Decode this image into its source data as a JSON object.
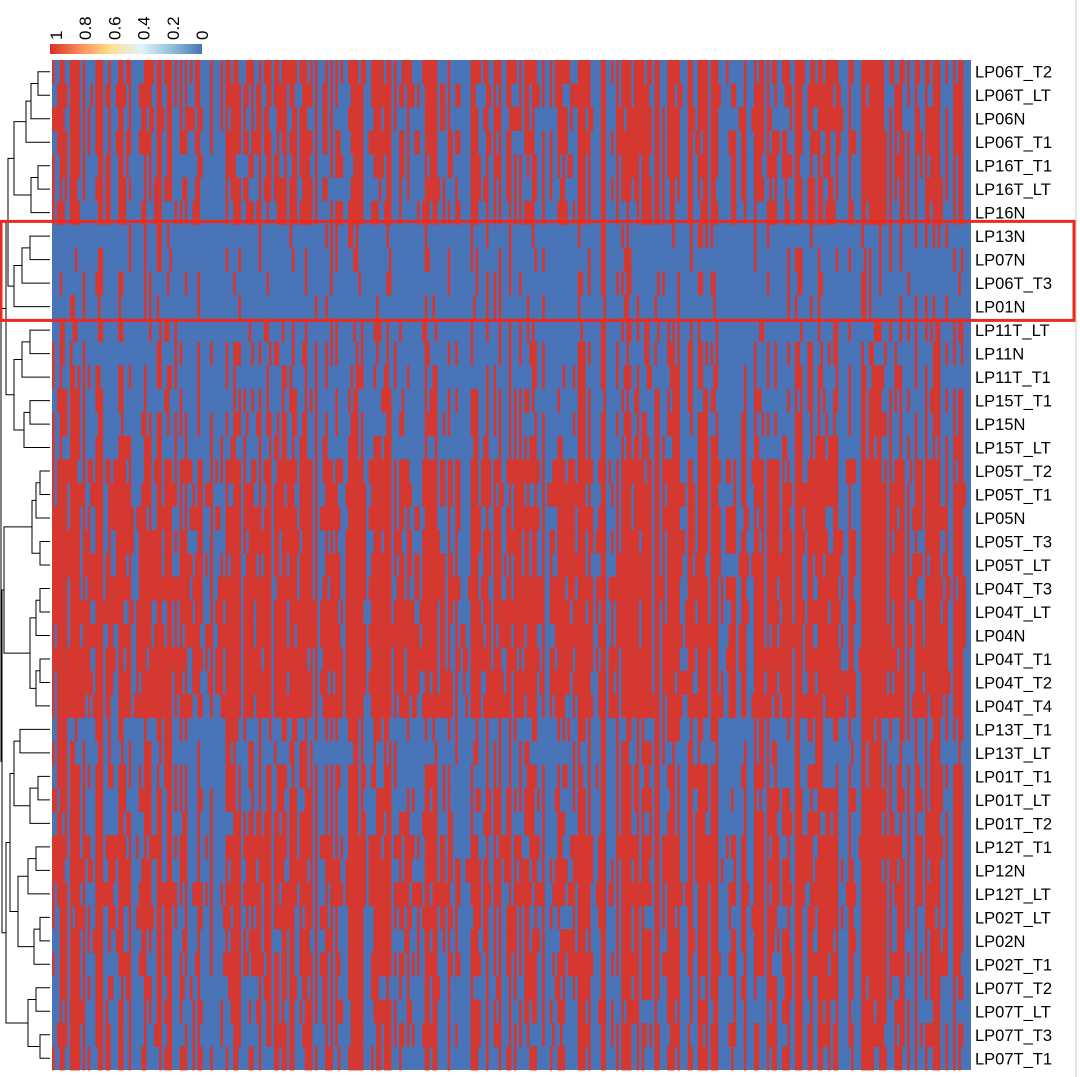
{
  "chart_data": {
    "type": "heatmap",
    "title": "",
    "xlabel": "",
    "ylabel": "",
    "rows": [
      "LP06T_T2",
      "LP06T_LT",
      "LP06N",
      "LP06T_T1",
      "LP16T_T1",
      "LP16T_LT",
      "LP16N",
      "LP13N",
      "LP07N",
      "LP06T_T3",
      "LP01N",
      "LP11T_LT",
      "LP11N",
      "LP11T_T1",
      "LP15T_T1",
      "LP15N",
      "LP15T_LT",
      "LP05T_T2",
      "LP05T_T1",
      "LP05N",
      "LP05T_T3",
      "LP05T_LT",
      "LP04T_T3",
      "LP04T_LT",
      "LP04N",
      "LP04T_T1",
      "LP04T_T2",
      "LP04T_T4",
      "LP13T_T1",
      "LP13T_LT",
      "LP01T_T1",
      "LP01T_LT",
      "LP01T_T2",
      "LP12T_T1",
      "LP12N",
      "LP12T_LT",
      "LP02T_LT",
      "LP02N",
      "LP02T_T1",
      "LP07T_T2",
      "LP07T_LT",
      "LP07T_T3",
      "LP07T_T1"
    ],
    "row_red_fraction": [
      0.5,
      0.5,
      0.48,
      0.5,
      0.42,
      0.42,
      0.42,
      0.22,
      0.25,
      0.25,
      0.22,
      0.3,
      0.3,
      0.32,
      0.38,
      0.38,
      0.38,
      0.55,
      0.55,
      0.55,
      0.55,
      0.55,
      0.6,
      0.6,
      0.6,
      0.6,
      0.6,
      0.6,
      0.35,
      0.35,
      0.45,
      0.45,
      0.45,
      0.55,
      0.55,
      0.55,
      0.5,
      0.5,
      0.5,
      0.42,
      0.42,
      0.42,
      0.42
    ],
    "columns_count": 360,
    "colorbar": {
      "ticks": [
        "1",
        "0.8",
        "0.6",
        "0.4",
        "0.2",
        "0"
      ],
      "colors": [
        "#d73027",
        "#fc8d59",
        "#fee090",
        "#e0f3f8",
        "#91bfdb",
        "#4575b4"
      ]
    },
    "cell_colors": {
      "high": "#d6372f",
      "low": "#4a74b8"
    },
    "highlight": {
      "rows": [
        "LP13N",
        "LP07N",
        "LP06T_T3",
        "LP01N"
      ],
      "color": "#ee2a1e"
    },
    "dendrogram_side": "left"
  }
}
